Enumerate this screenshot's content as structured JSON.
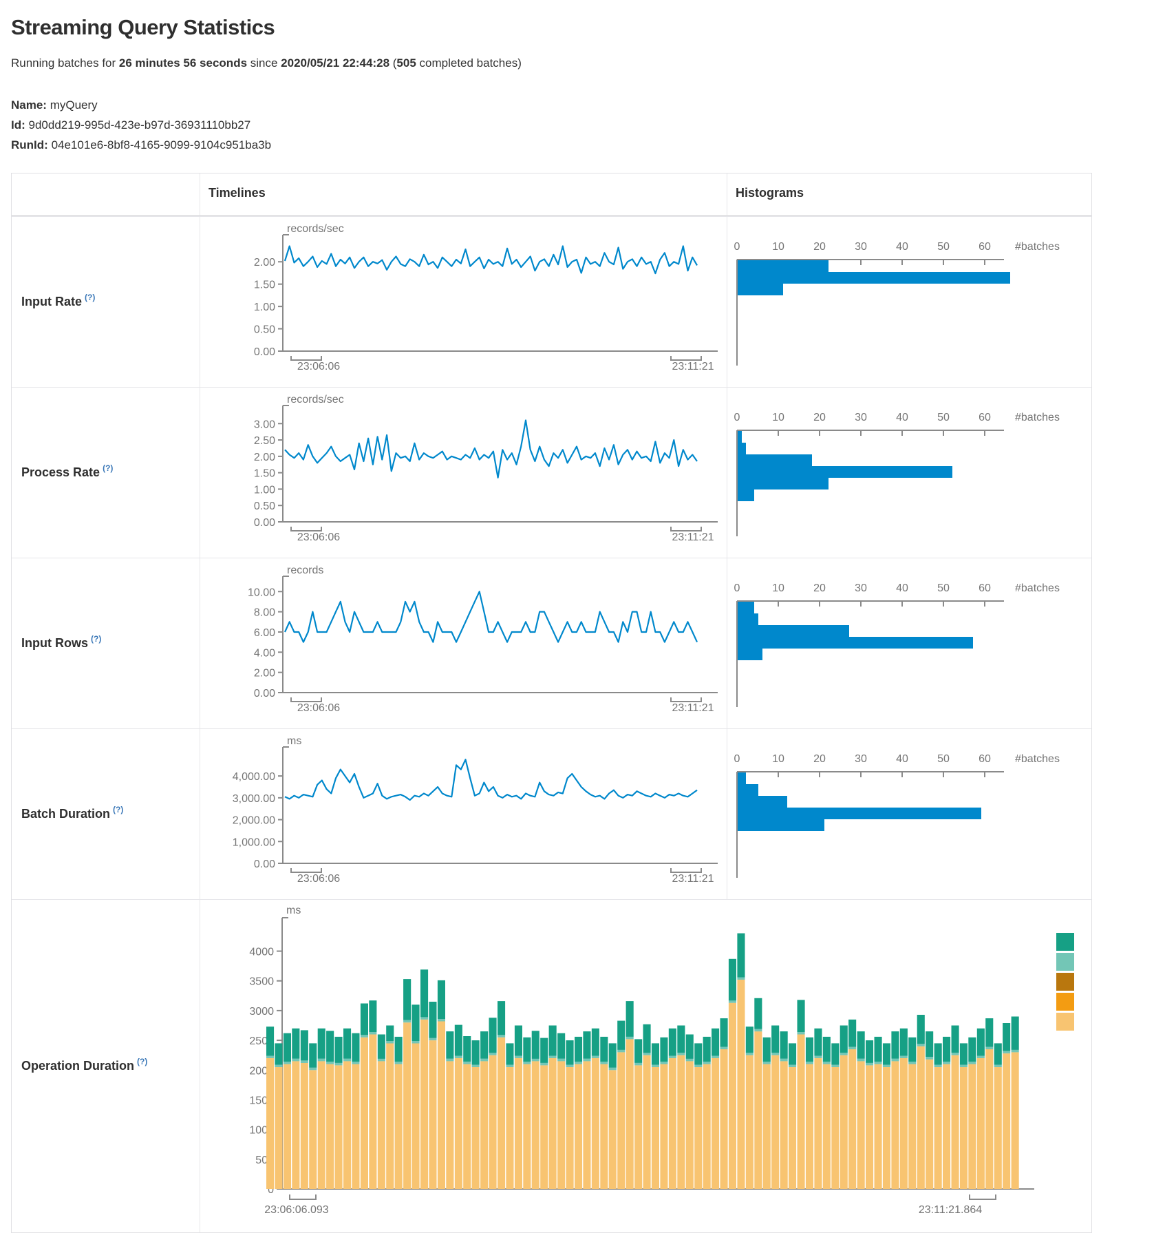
{
  "header": {
    "title": "Streaming Query Statistics",
    "subtitle": {
      "t1": "Running batches for ",
      "duration": "26 minutes 56 seconds",
      "t2": " since ",
      "timestamp": "2020/05/21 22:44:28",
      "t3": " (",
      "count": "505",
      "t4": " completed batches)"
    },
    "meta": {
      "name_label": "Name:",
      "name": "myQuery",
      "id_label": "Id:",
      "id": "9d0dd219-995d-423e-b97d-36931110bb27",
      "runid_label": "RunId:",
      "runid": "04e101e6-8bf8-4165-9099-9104c951ba3b"
    }
  },
  "table": {
    "col_timelines": "Timelines",
    "col_histograms": "Histograms",
    "rows": [
      {
        "label": "Input Rate",
        "help": "(?)"
      },
      {
        "label": "Process Rate",
        "help": "(?)"
      },
      {
        "label": "Input Rows",
        "help": "(?)"
      },
      {
        "label": "Batch Duration",
        "help": "(?)"
      },
      {
        "label": "Operation Duration",
        "help": "(?)"
      }
    ]
  },
  "chart_data": [
    {
      "type": "line",
      "title": "Input Rate timeline",
      "unit": "records/sec",
      "x_start": "23:06:06",
      "x_end": "23:11:21",
      "color": "#0088cc",
      "ymax": 2.42,
      "yticks": [
        {
          "label": "2.00",
          "v": 2
        },
        {
          "label": "1.50",
          "v": 1.5
        },
        {
          "label": "1.00",
          "v": 1
        },
        {
          "label": "0.50",
          "v": 0.5
        },
        {
          "label": "0.00",
          "v": 0
        }
      ],
      "values": [
        2.02,
        2.35,
        1.98,
        2.08,
        1.9,
        2.0,
        2.12,
        1.88,
        2.02,
        1.95,
        2.18,
        1.9,
        2.05,
        1.96,
        2.1,
        1.86,
        2.0,
        2.1,
        1.9,
        2.0,
        1.96,
        2.04,
        1.82,
        2.0,
        2.12,
        1.95,
        1.9,
        2.06,
        2.0,
        1.9,
        2.16,
        1.94,
        2.0,
        1.86,
        2.1,
        2.0,
        1.9,
        2.05,
        1.96,
        2.28,
        1.9,
        2.0,
        2.1,
        1.85,
        2.05,
        1.95,
        2.0,
        1.9,
        2.3,
        1.95,
        2.05,
        1.88,
        2.0,
        2.12,
        1.8,
        2.0,
        2.06,
        1.9,
        2.16,
        1.94,
        2.35,
        1.88,
        2.0,
        2.05,
        1.75,
        2.1,
        1.95,
        2.0,
        1.9,
        2.2,
        2.0,
        1.94,
        2.32,
        1.84,
        2.0,
        2.06,
        1.9,
        2.1,
        1.95,
        2.0,
        1.74,
        2.05,
        2.2,
        1.9,
        2.0,
        1.95,
        2.35,
        1.8,
        2.1,
        1.92
      ]
    },
    {
      "type": "bar-h",
      "title": "Input Rate histogram",
      "xlabel": "#batches",
      "color": "#0088cc",
      "xticks": [
        0,
        10,
        20,
        30,
        40,
        50,
        60
      ],
      "values": [
        22,
        66,
        11
      ]
    },
    {
      "type": "line",
      "title": "Process Rate timeline",
      "unit": "records/sec",
      "x_start": "23:06:06",
      "x_end": "23:11:21",
      "color": "#0088cc",
      "ymax": 3.3,
      "yticks": [
        {
          "label": "3.00",
          "v": 3
        },
        {
          "label": "2.50",
          "v": 2.5
        },
        {
          "label": "2.00",
          "v": 2
        },
        {
          "label": "1.50",
          "v": 1.5
        },
        {
          "label": "1.00",
          "v": 1
        },
        {
          "label": "0.50",
          "v": 0.5
        },
        {
          "label": "0.00",
          "v": 0
        }
      ],
      "values": [
        2.2,
        2.05,
        1.95,
        2.1,
        1.9,
        2.35,
        2.0,
        1.8,
        1.95,
        2.1,
        2.3,
        2.0,
        1.85,
        1.95,
        2.05,
        1.6,
        2.4,
        1.85,
        2.55,
        1.75,
        2.6,
        1.9,
        2.65,
        1.55,
        2.1,
        1.95,
        2.0,
        1.85,
        2.4,
        1.9,
        2.1,
        2.0,
        1.95,
        2.05,
        2.15,
        1.9,
        2.0,
        1.95,
        1.9,
        2.05,
        1.95,
        2.25,
        1.9,
        2.05,
        1.95,
        2.15,
        1.35,
        2.2,
        1.9,
        2.1,
        1.75,
        2.3,
        3.1,
        2.2,
        1.85,
        2.3,
        1.9,
        1.7,
        2.1,
        1.95,
        2.2,
        1.8,
        2.05,
        2.3,
        1.9,
        2.0,
        1.95,
        2.1,
        1.7,
        2.25,
        1.9,
        2.35,
        1.75,
        2.05,
        2.2,
        1.9,
        2.15,
        1.95,
        2.0,
        1.85,
        2.45,
        1.8,
        2.1,
        1.95,
        2.5,
        1.7,
        2.2,
        1.9,
        2.05,
        1.85
      ]
    },
    {
      "type": "bar-h",
      "title": "Process Rate histogram",
      "xlabel": "#batches",
      "color": "#0088cc",
      "xticks": [
        0,
        10,
        20,
        30,
        40,
        50,
        60
      ],
      "values": [
        1,
        2,
        18,
        52,
        22,
        4
      ]
    },
    {
      "type": "line",
      "title": "Input Rows timeline",
      "unit": "records",
      "x_start": "23:06:06",
      "x_end": "23:11:21",
      "color": "#0088cc",
      "ymax": 10.7,
      "yticks": [
        {
          "label": "10.00",
          "v": 10
        },
        {
          "label": "8.00",
          "v": 8
        },
        {
          "label": "6.00",
          "v": 6
        },
        {
          "label": "4.00",
          "v": 4
        },
        {
          "label": "2.00",
          "v": 2
        },
        {
          "label": "0.00",
          "v": 0
        }
      ],
      "values": [
        6,
        7,
        6,
        6,
        5,
        6,
        8,
        6,
        6,
        6,
        7,
        8,
        9,
        7,
        6,
        8,
        7,
        6,
        6,
        6,
        7,
        6,
        6,
        6,
        6,
        7,
        9,
        8,
        9,
        7,
        6,
        6,
        5,
        7,
        6,
        6,
        6,
        5,
        6,
        7,
        8,
        9,
        10,
        8,
        6,
        6,
        7,
        6,
        5,
        6,
        6,
        6,
        7,
        6,
        6,
        8,
        8,
        7,
        6,
        5,
        6,
        7,
        6,
        6,
        7,
        6,
        6,
        6,
        8,
        7,
        6,
        6,
        5,
        7,
        6,
        8,
        8,
        6,
        6,
        8,
        6,
        6,
        5,
        6,
        7,
        6,
        6,
        7,
        6,
        5
      ]
    },
    {
      "type": "bar-h",
      "title": "Input Rows histogram",
      "xlabel": "#batches",
      "color": "#0088cc",
      "xticks": [
        0,
        10,
        20,
        30,
        40,
        50,
        60
      ],
      "values": [
        4,
        5,
        27,
        57,
        6
      ]
    },
    {
      "type": "line",
      "title": "Batch Duration timeline",
      "unit": "ms",
      "x_start": "23:06:06",
      "x_end": "23:11:21",
      "color": "#0088cc",
      "ymax": 4950,
      "yticks": [
        {
          "label": "4,000.00",
          "v": 4000
        },
        {
          "label": "3,000.00",
          "v": 3000
        },
        {
          "label": "2,000.00",
          "v": 2000
        },
        {
          "label": "1,000.00",
          "v": 1000
        },
        {
          "label": "0.00",
          "v": 0
        }
      ],
      "values": [
        3050,
        2950,
        3100,
        3000,
        3150,
        3100,
        3050,
        3600,
        3800,
        3400,
        3200,
        3900,
        4300,
        4000,
        3700,
        4100,
        3500,
        3000,
        3100,
        3200,
        3650,
        3100,
        2950,
        3050,
        3100,
        3150,
        3050,
        2900,
        3100,
        3050,
        3200,
        3100,
        3300,
        3500,
        3200,
        3100,
        3050,
        4500,
        4300,
        4750,
        3900,
        3100,
        3200,
        3700,
        3300,
        3500,
        3100,
        3000,
        3150,
        3050,
        3100,
        2950,
        3200,
        3100,
        3050,
        3700,
        3300,
        3150,
        3100,
        3250,
        3200,
        3900,
        4100,
        3800,
        3500,
        3300,
        3150,
        3050,
        3100,
        2950,
        3200,
        3350,
        3100,
        3000,
        3150,
        3100,
        3300,
        3200,
        3100,
        3050,
        3200,
        3100,
        3000,
        3150,
        3100,
        3200,
        3100,
        3050,
        3200,
        3350
      ]
    },
    {
      "type": "bar-h",
      "title": "Batch Duration histogram",
      "xlabel": "#batches",
      "color": "#0088cc",
      "xticks": [
        0,
        10,
        20,
        30,
        40,
        50,
        60
      ],
      "values": [
        2,
        5,
        12,
        59,
        21
      ]
    },
    {
      "type": "stacked-bar",
      "title": "Operation Duration timeline",
      "unit": "ms",
      "x_start": "23:06:06.093",
      "x_end": "23:11:21.864",
      "ymax": 4400,
      "yticks": [
        {
          "label": "4000",
          "v": 4000
        },
        {
          "label": "3500",
          "v": 3500
        },
        {
          "label": "3000",
          "v": 3000
        },
        {
          "label": "2500",
          "v": 2500
        },
        {
          "label": "2000",
          "v": 2000
        },
        {
          "label": "1500",
          "v": 1500
        },
        {
          "label": "1000",
          "v": 1000
        },
        {
          "label": "500",
          "v": 500
        },
        {
          "label": "0",
          "v": 0
        }
      ],
      "segment_colors": {
        "base": "#f8c471",
        "sliver": "#73c6b6",
        "top": "#16a085"
      },
      "legend_colors": [
        "#16a085",
        "#73c6b6",
        "#b9770e",
        "#f39c12",
        "#f8c471"
      ],
      "sliver": 40,
      "base_values": [
        2200,
        2050,
        2100,
        2150,
        2120,
        2000,
        2150,
        2100,
        2080,
        2150,
        2100,
        2550,
        2600,
        2150,
        2450,
        2100,
        2800,
        2450,
        2850,
        2500,
        2820,
        2150,
        2200,
        2100,
        2050,
        2150,
        2250,
        2550,
        2050,
        2200,
        2100,
        2150,
        2080,
        2200,
        2150,
        2050,
        2100,
        2150,
        2200,
        2100,
        2000,
        2300,
        2520,
        2080,
        2250,
        2050,
        2100,
        2200,
        2250,
        2150,
        2050,
        2100,
        2200,
        2350,
        3130,
        3520,
        2250,
        2650,
        2100,
        2250,
        2150,
        2050,
        2600,
        2100,
        2200,
        2100,
        2050,
        2250,
        2350,
        2150,
        2080,
        2100,
        2050,
        2150,
        2200,
        2100,
        2400,
        2180,
        2050,
        2100,
        2250,
        2050,
        2100,
        2200,
        2350,
        2050,
        2280,
        2300
      ],
      "total_values": [
        2730,
        2450,
        2620,
        2700,
        2670,
        2450,
        2700,
        2660,
        2560,
        2700,
        2620,
        3120,
        3170,
        2600,
        2750,
        2560,
        3530,
        3100,
        3690,
        3150,
        3510,
        2650,
        2760,
        2570,
        2500,
        2650,
        2880,
        3160,
        2450,
        2750,
        2550,
        2660,
        2540,
        2750,
        2620,
        2500,
        2560,
        2650,
        2700,
        2560,
        2450,
        2830,
        3160,
        2520,
        2770,
        2450,
        2550,
        2700,
        2750,
        2600,
        2450,
        2560,
        2700,
        2870,
        3870,
        4300,
        2730,
        3210,
        2550,
        2750,
        2650,
        2450,
        3180,
        2550,
        2700,
        2560,
        2450,
        2750,
        2850,
        2650,
        2500,
        2560,
        2450,
        2650,
        2700,
        2550,
        2930,
        2650,
        2450,
        2560,
        2750,
        2450,
        2550,
        2700,
        2870,
        2450,
        2790,
        2900
      ]
    }
  ]
}
